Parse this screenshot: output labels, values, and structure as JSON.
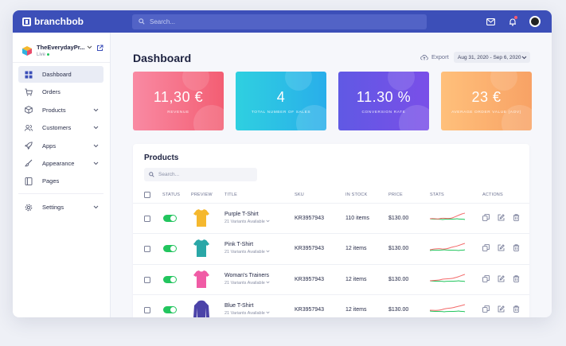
{
  "brand": {
    "name": "branchbob"
  },
  "header": {
    "search_placeholder": "Search..."
  },
  "store": {
    "name": "TheEverydayPr...",
    "status": "Live"
  },
  "sidebar": {
    "items": [
      {
        "label": "Dashboard"
      },
      {
        "label": "Orders"
      },
      {
        "label": "Products"
      },
      {
        "label": "Customers"
      },
      {
        "label": "Apps"
      },
      {
        "label": "Appearance"
      },
      {
        "label": "Pages"
      },
      {
        "label": "Settings"
      }
    ]
  },
  "main": {
    "title": "Dashboard",
    "export_label": "Export",
    "date_range": "Aug 31, 2020 - Sep 6, 2020"
  },
  "cards": [
    {
      "value": "11,30 €",
      "label": "Revenue",
      "gradient_start": "#f98aa3",
      "gradient_end": "#f35e73"
    },
    {
      "value": "4",
      "label": "Total number of sales",
      "gradient_start": "#2fd0e0",
      "gradient_end": "#29aeea"
    },
    {
      "value": "11.30 %",
      "label": "Conversion rate",
      "gradient_start": "#6059e4",
      "gradient_end": "#7a4fe8"
    },
    {
      "value": "23 €",
      "label": "Average order value (AOV)",
      "gradient_start": "#ffc07b",
      "gradient_end": "#f8a265"
    }
  ],
  "products": {
    "title": "Products",
    "search_placeholder": "Search...",
    "columns": [
      "STATUS",
      "PREVIEW",
      "TITLE",
      "SKU",
      "IN STOCK",
      "PRICE",
      "STATS",
      "ACTIONS"
    ],
    "rows": [
      {
        "title": "Purple T-Shirt",
        "variants": "21 Variants Available",
        "sku": "KR3957943",
        "stock": "110  items",
        "price": "$130.00",
        "color": "#f5b82e"
      },
      {
        "title": "Pink T-Shirt",
        "variants": "21 Variants Available",
        "sku": "KR3957943",
        "stock": "12 items",
        "price": "$130.00",
        "color": "#2aa7a7"
      },
      {
        "title": "Woman's Trainers",
        "variants": "21 Variants Available",
        "sku": "KR3957943",
        "stock": "12 items",
        "price": "$130.00",
        "color": "#f05ba5"
      },
      {
        "title": "Blue T-Shirt",
        "variants": "21 Variants Available",
        "sku": "KR3957943",
        "stock": "12 items",
        "price": "$130.00",
        "color": "#4b43a8"
      }
    ]
  },
  "colors": {
    "topbar": "#3c4fb8",
    "accent_green": "#22c55e",
    "spark_red": "#f36a6a"
  }
}
